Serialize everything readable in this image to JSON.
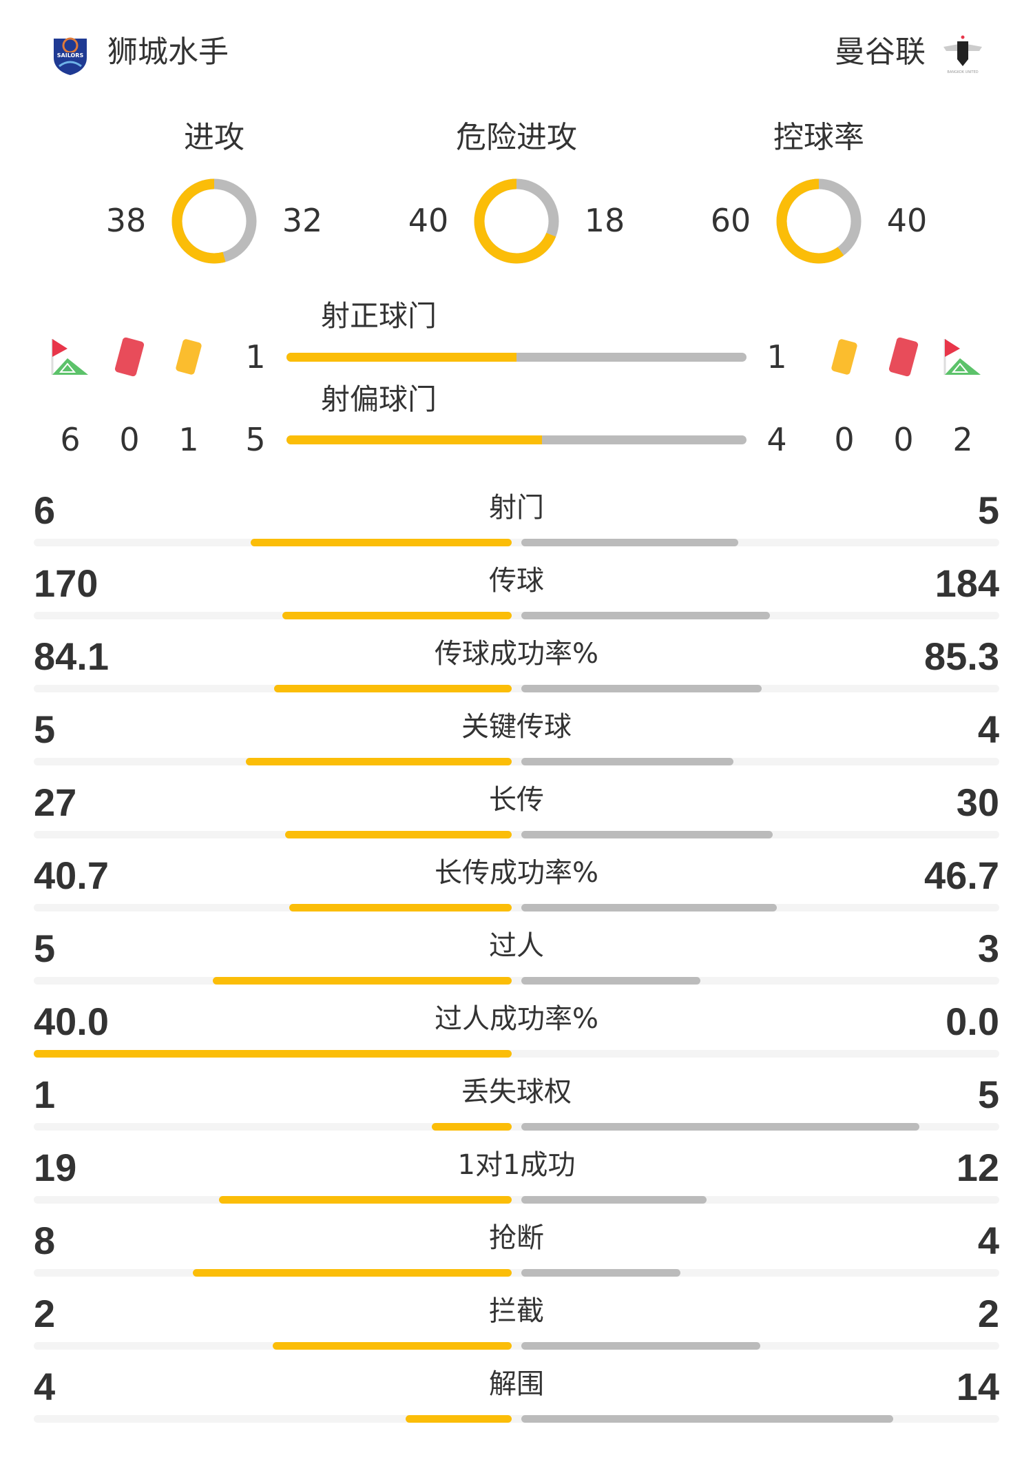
{
  "colors": {
    "home": "#fbbd08",
    "away": "#bbbbbb",
    "track": "#f4f4f4",
    "red_card": "#e84c5a",
    "yellow_card": "#fbbd2e",
    "flag_red": "#e8364a",
    "flag_green": "#5cc26a"
  },
  "header": {
    "home_team": "狮城水手",
    "away_team": "曼谷联",
    "home_logo_text": "SAILORS",
    "away_logo_text": "BANGKOK UNITED"
  },
  "donuts": [
    {
      "label": "进攻",
      "home": "38",
      "away": "32"
    },
    {
      "label": "危险进攻",
      "home": "40",
      "away": "18"
    },
    {
      "label": "控球率",
      "home": "60",
      "away": "40"
    }
  ],
  "shots": {
    "on_target": {
      "label": "射正球门",
      "home": "1",
      "away": "1"
    },
    "off_target": {
      "label": "射偏球门",
      "home": "5",
      "away": "4"
    },
    "home_events": {
      "corners": "6",
      "red_cards": "0",
      "yellow_cards": "1"
    },
    "away_events": {
      "corners": "2",
      "red_cards": "0",
      "yellow_cards": "0"
    },
    "icons": [
      "corner-flag-icon",
      "red-card-icon",
      "yellow-card-icon"
    ]
  },
  "stats": [
    {
      "label": "射门",
      "home": "6",
      "away": "5"
    },
    {
      "label": "传球",
      "home": "170",
      "away": "184"
    },
    {
      "label": "传球成功率%",
      "home": "84.1",
      "away": "85.3"
    },
    {
      "label": "关键传球",
      "home": "5",
      "away": "4"
    },
    {
      "label": "长传",
      "home": "27",
      "away": "30"
    },
    {
      "label": "长传成功率%",
      "home": "40.7",
      "away": "46.7"
    },
    {
      "label": "过人",
      "home": "5",
      "away": "3"
    },
    {
      "label": "过人成功率%",
      "home": "40.0",
      "away": "0.0"
    },
    {
      "label": "丢失球权",
      "home": "1",
      "away": "5"
    },
    {
      "label": "1对1成功",
      "home": "19",
      "away": "12"
    },
    {
      "label": "抢断",
      "home": "8",
      "away": "4"
    },
    {
      "label": "拦截",
      "home": "2",
      "away": "2"
    },
    {
      "label": "解围",
      "home": "4",
      "away": "14"
    }
  ]
}
